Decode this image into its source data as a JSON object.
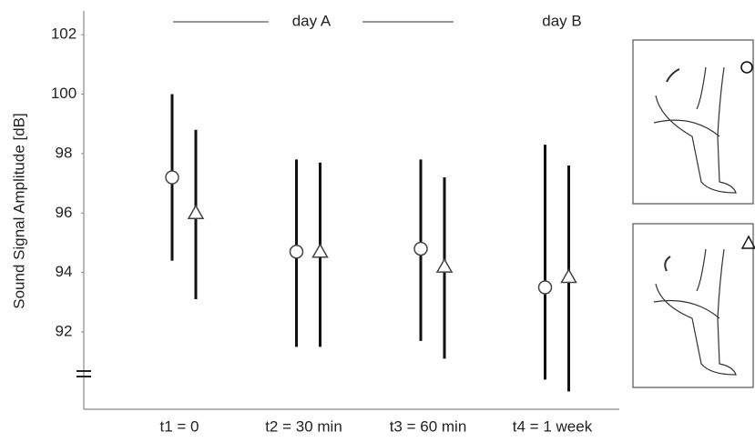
{
  "chart_data": {
    "type": "errorbar",
    "y_label": "Sound Signal Amplitude [dB]",
    "annotations": [
      "day A",
      "day B"
    ],
    "categories": [
      "t1 = 0",
      "t2 = 30 min",
      "t3 = 60 min",
      "t4 = 1 week"
    ],
    "series": [
      {
        "marker": "circle",
        "color": "#111111",
        "values": [
          97.2,
          94.7,
          94.8,
          93.5
        ],
        "lower": [
          94.4,
          91.5,
          91.7,
          90.4
        ],
        "upper": [
          100.0,
          97.8,
          97.8,
          98.3
        ]
      },
      {
        "marker": "triangle",
        "color": "#111111",
        "values": [
          96.0,
          94.7,
          94.2,
          93.85
        ],
        "lower": [
          93.1,
          91.5,
          91.1,
          90.0
        ],
        "upper": [
          98.8,
          97.7,
          97.2,
          97.6
        ]
      }
    ],
    "ylim": [
      89.4,
      102.8
    ],
    "yticks": [
      92,
      94,
      96,
      98,
      100,
      102
    ]
  }
}
